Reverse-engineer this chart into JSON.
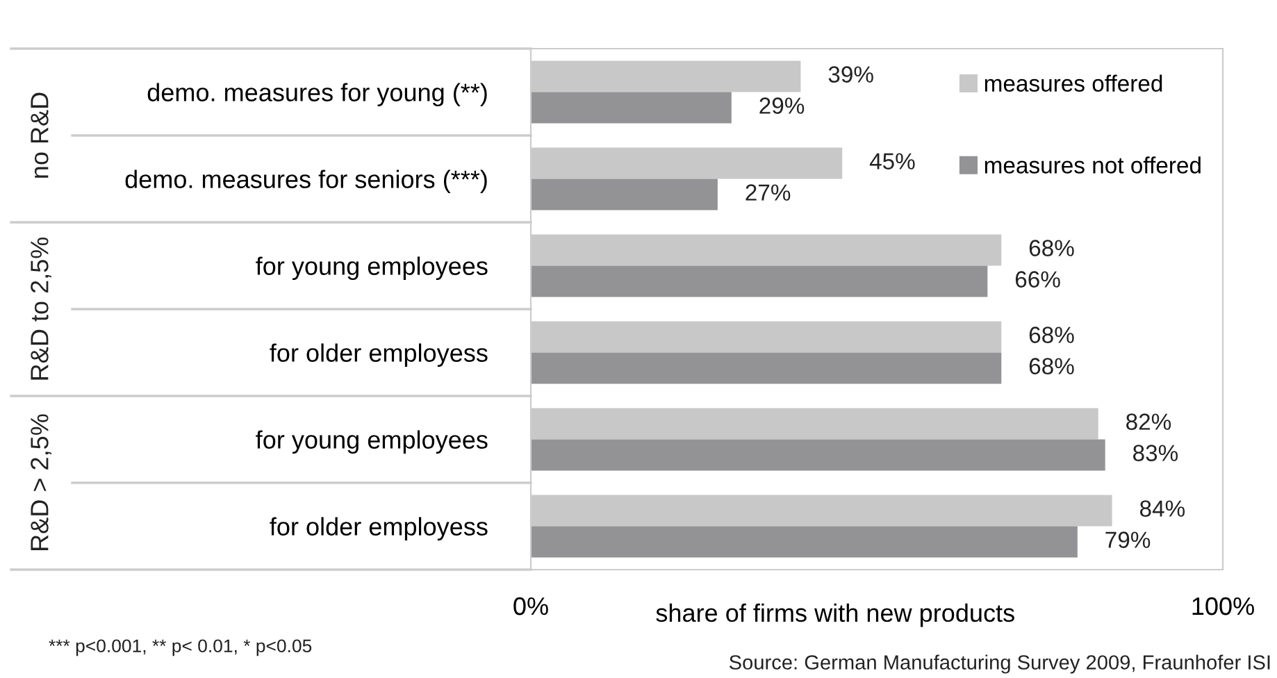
{
  "chart_data": {
    "type": "bar",
    "orientation": "horizontal",
    "categories": [
      "demo. measures for young (**)",
      "demo. measures for seniors (***)",
      "for young employees",
      "for older employess",
      "for young employees",
      "for older employess"
    ],
    "series": [
      {
        "name": "measures offered",
        "color": "#c8c8c8",
        "values": [
          39,
          45,
          68,
          68,
          82,
          84
        ]
      },
      {
        "name": "measures not offered",
        "color": "#939395",
        "values": [
          29,
          27,
          66,
          68,
          83,
          79
        ]
      }
    ],
    "xlim": [
      0,
      100
    ],
    "xticks": [
      {
        "value": 0,
        "label": "0%"
      },
      {
        "value": 100,
        "label": "100%"
      }
    ],
    "xlabel": "share of firms with new products",
    "value_labels": [
      [
        "39%",
        "45%",
        "68%",
        "68%",
        "82%",
        "84%"
      ],
      [
        "29%",
        "27%",
        "66%",
        "68%",
        "83%",
        "79%"
      ]
    ],
    "legend": "top right",
    "grid": false,
    "annotations": [
      "no R&D",
      "R&D to 2,5%",
      "R&D > 2,5%",
      "*** p<0.001, ** p< 0.01, * p<0.05",
      "Source: German Manufacturing Survey 2009, Fraunhofer ISI"
    ]
  }
}
